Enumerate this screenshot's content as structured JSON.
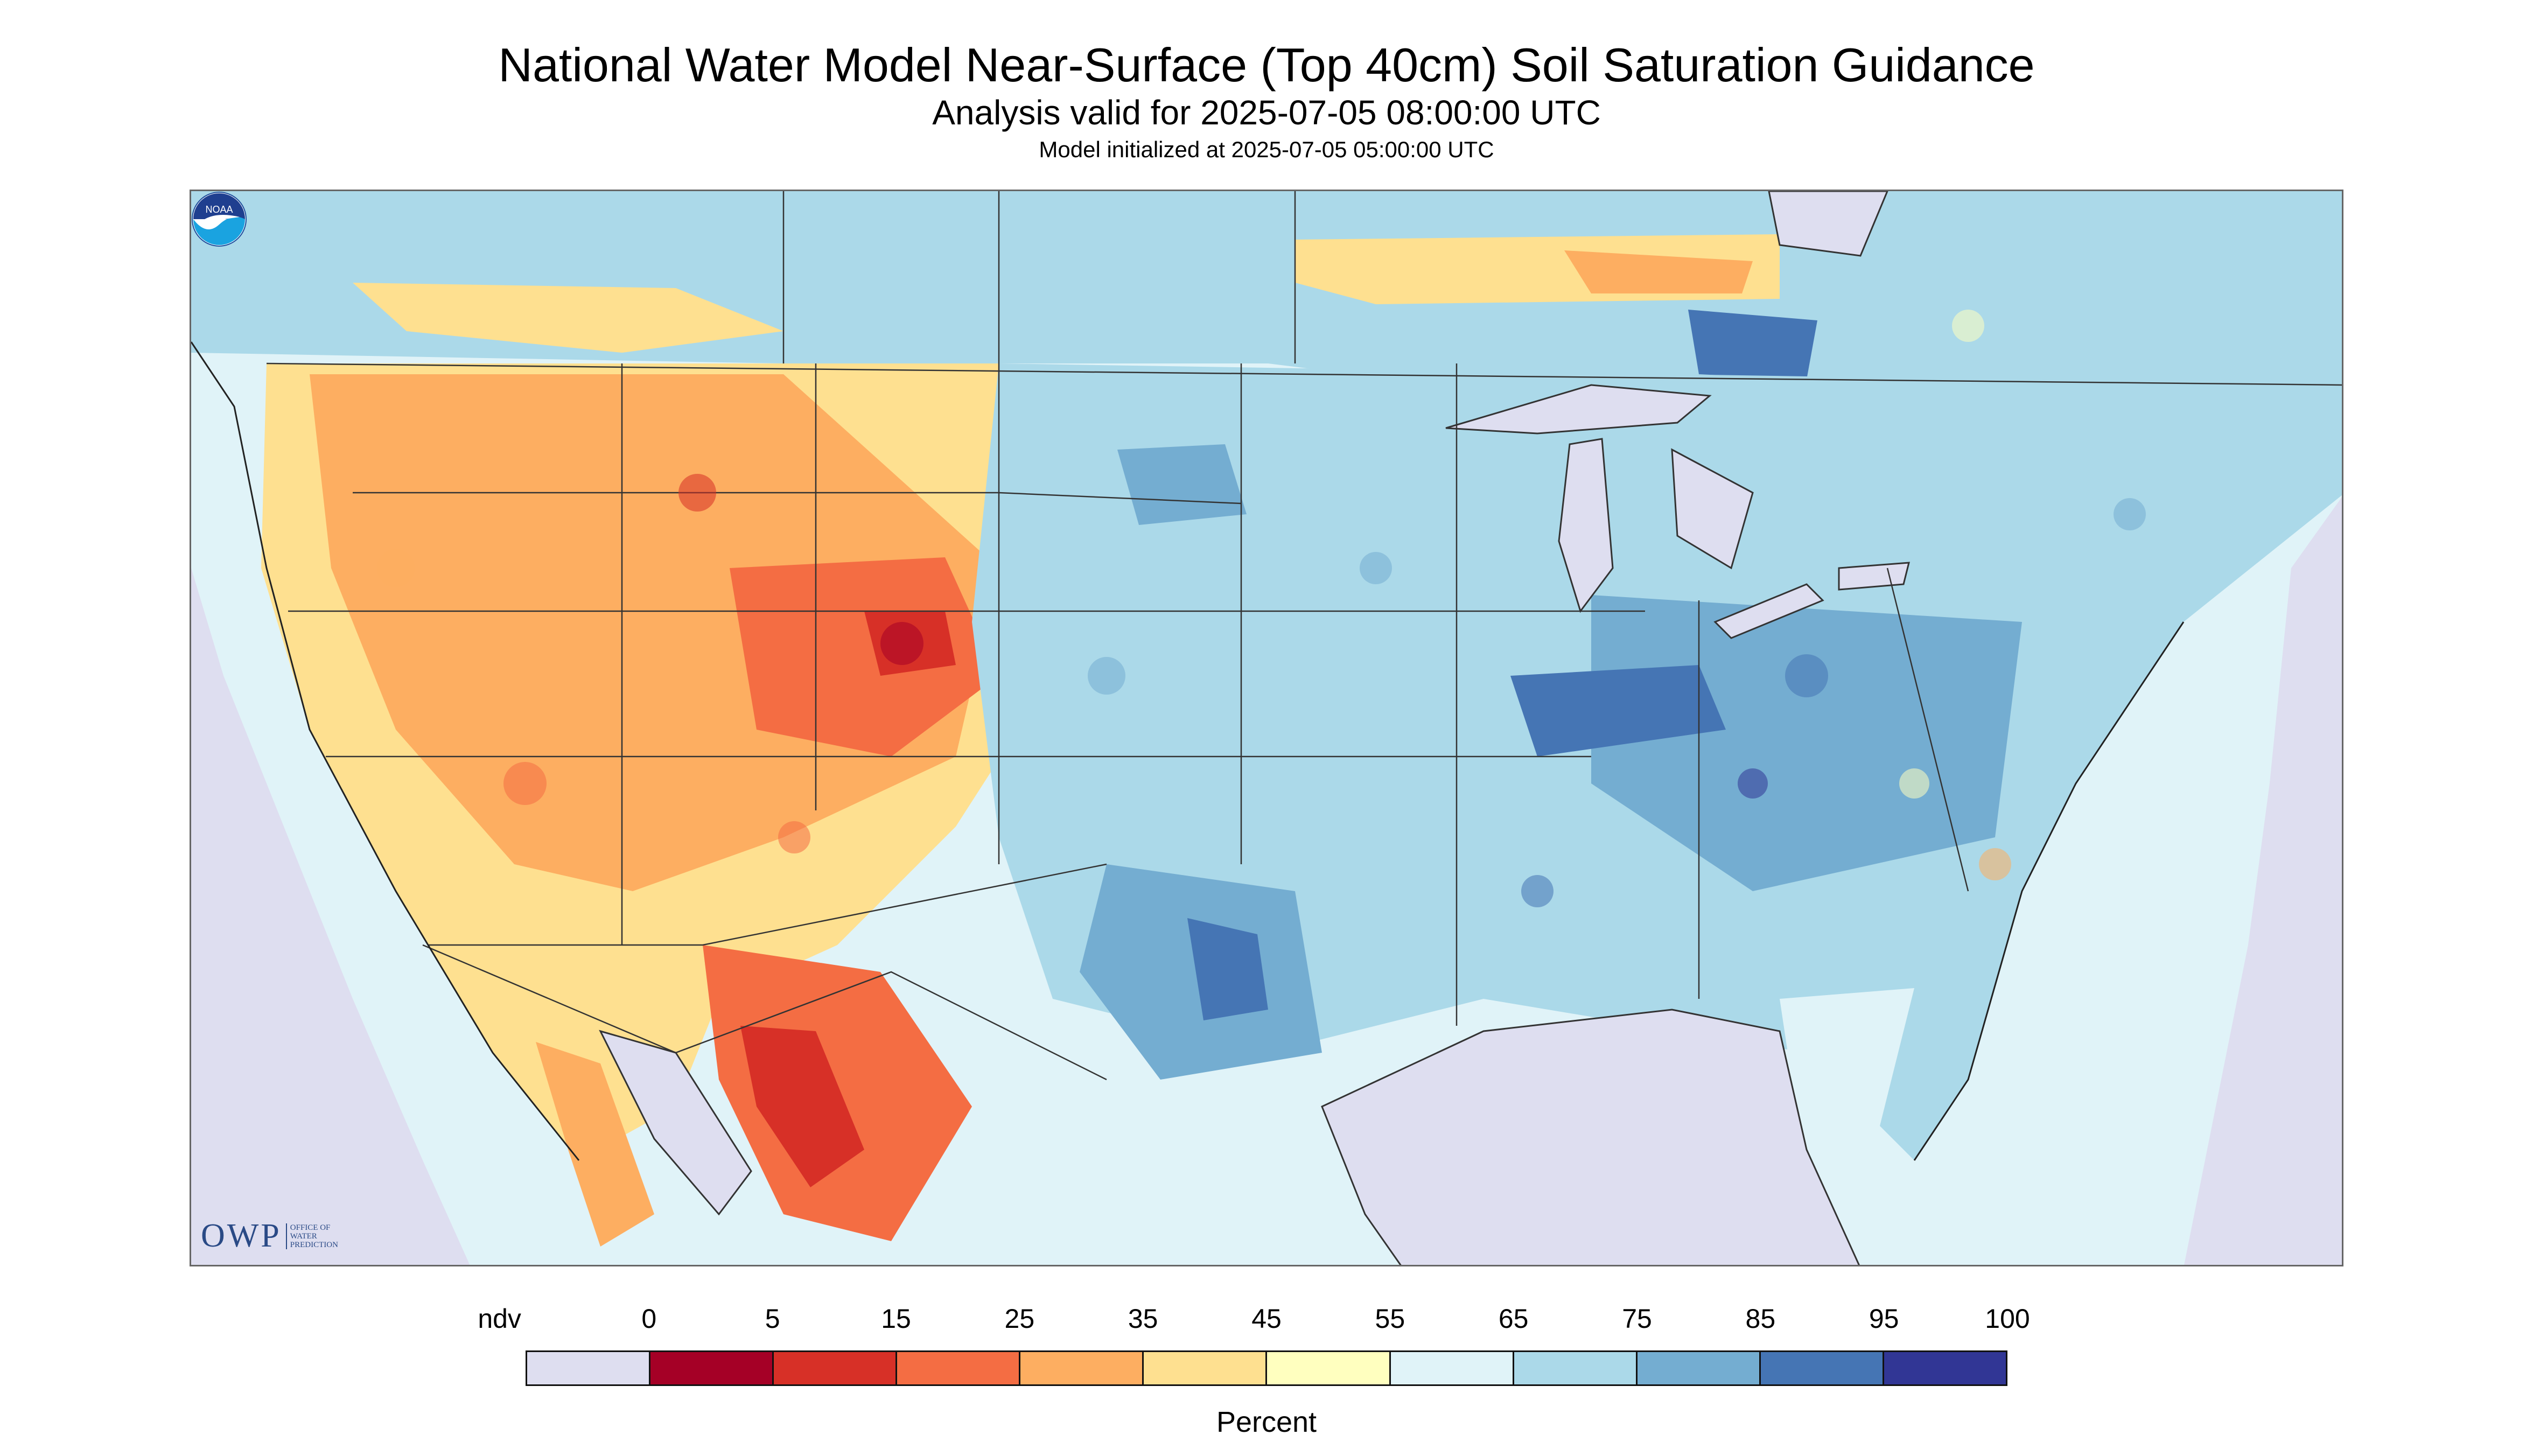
{
  "header": {
    "title": "National Water Model Near-Surface (Top 40cm) Soil Saturation Guidance",
    "subtitle": "Analysis valid for 2025-07-05 08:00:00 UTC",
    "init": "Model initialized at 2025-07-05 05:00:00 UTC"
  },
  "logos": {
    "owp_mark": "OWP",
    "owp_text": "OFFICE OF WATER PREDICTION",
    "noaa_text": "NOAA"
  },
  "legend": {
    "unit": "Percent",
    "labels": [
      "ndv",
      "0",
      "5",
      "15",
      "25",
      "35",
      "45",
      "55",
      "65",
      "75",
      "85",
      "95",
      "100"
    ],
    "colors": [
      "#dedef0",
      "#a50026",
      "#d73027",
      "#f46d43",
      "#fdae61",
      "#fee090",
      "#ffffbf",
      "#e0f3f8",
      "#abd9e9",
      "#74add1",
      "#4575b4",
      "#313695"
    ]
  },
  "map_colors": {
    "ocean_nodata": "#dedef0",
    "very_dry": "#a50026",
    "dry": "#d73027",
    "moderately_dry": "#f46d43",
    "dryish": "#fdae61",
    "average_low": "#fee090",
    "average": "#ffffbf",
    "moist": "#e0f3f8",
    "wet": "#abd9e9",
    "very_wet": "#74add1",
    "saturated": "#4575b4",
    "fully_saturated": "#313695",
    "boundary": "#333333"
  }
}
